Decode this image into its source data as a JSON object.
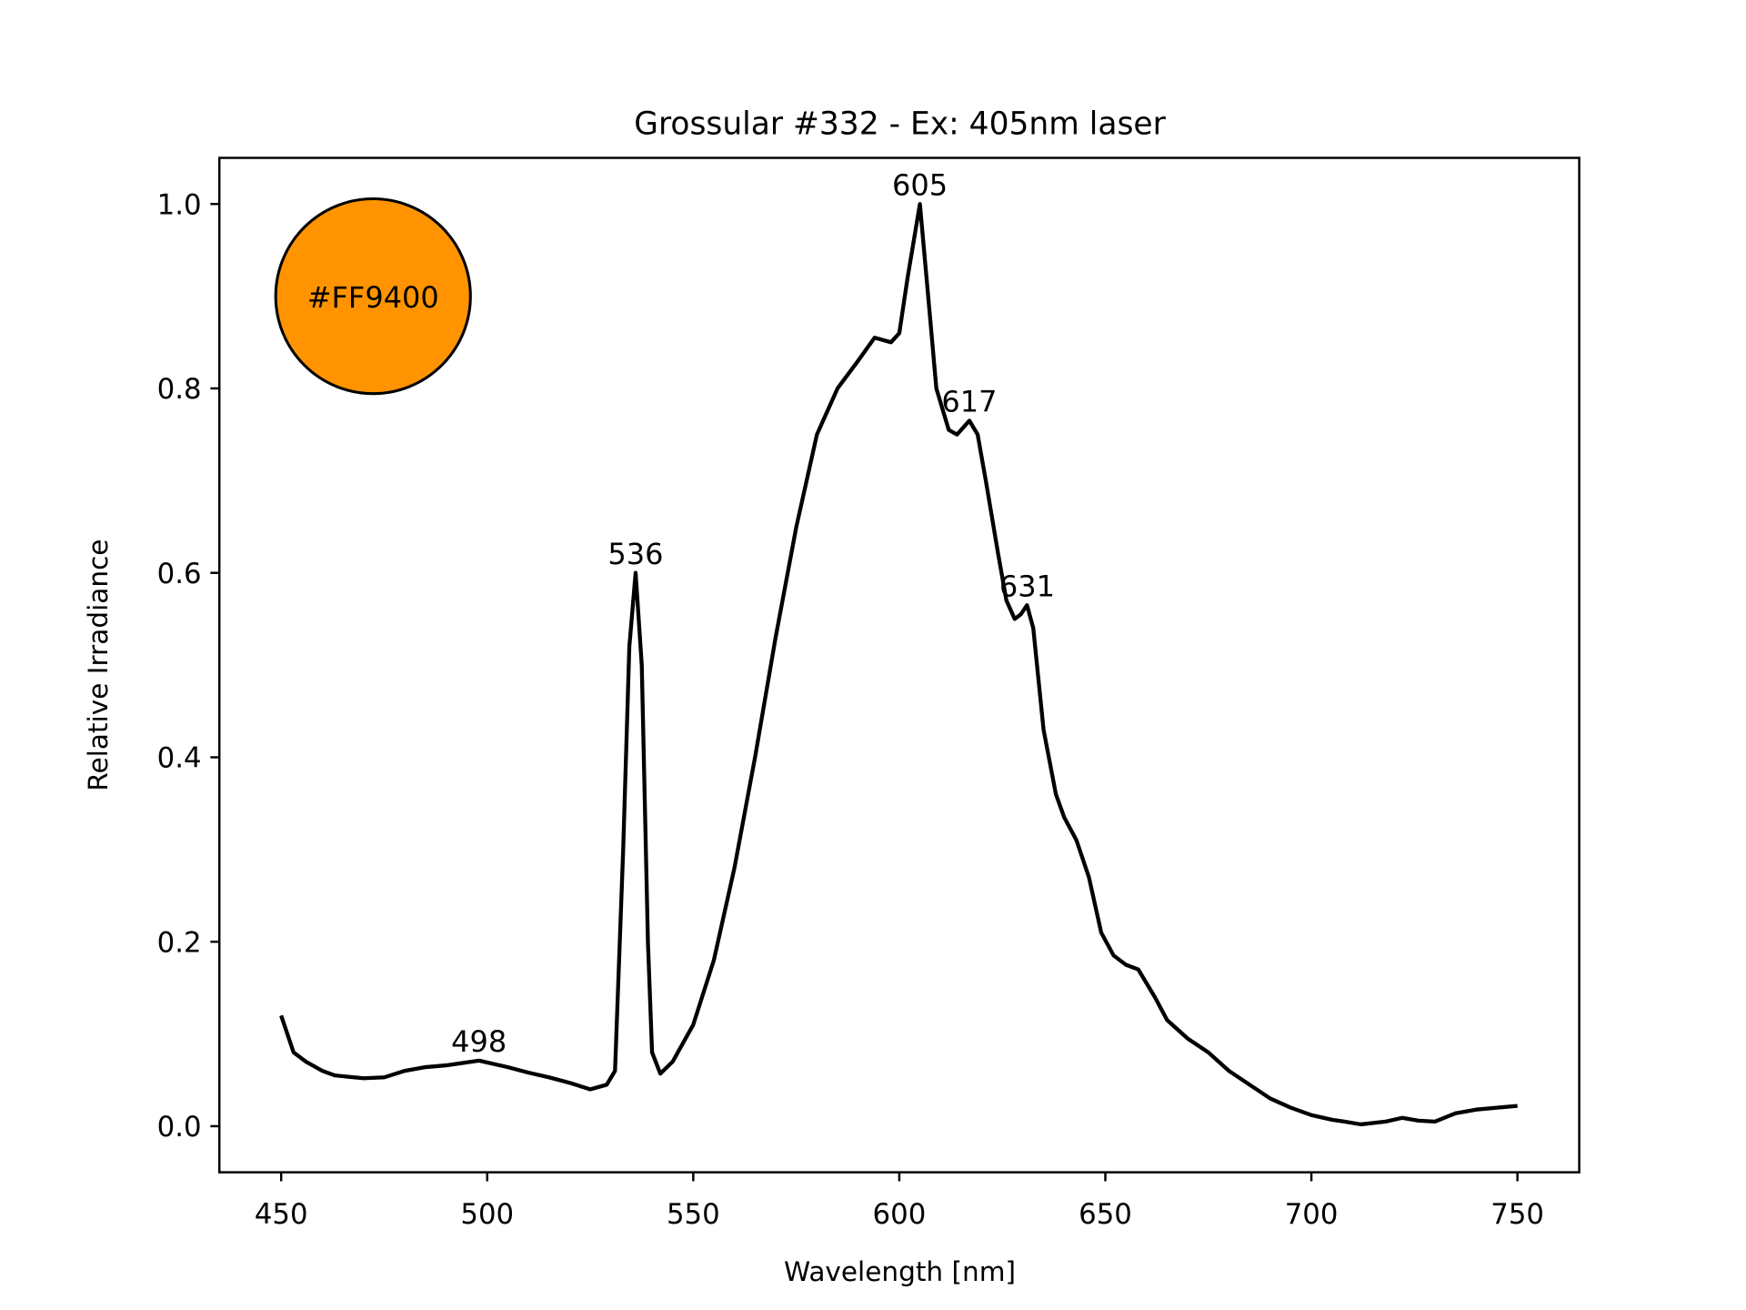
{
  "chart_data": {
    "type": "line",
    "title": "Grossular #332 - Ex: 405nm laser",
    "xlabel": "Wavelength [nm]",
    "ylabel": "Relative Irradiance",
    "xlim": [
      435,
      765
    ],
    "ylim": [
      -0.05,
      1.05
    ],
    "xticks": [
      450,
      500,
      550,
      600,
      650,
      700,
      750
    ],
    "xtick_labels": [
      "450",
      "500",
      "550",
      "600",
      "650",
      "700",
      "750"
    ],
    "yticks": [
      0.0,
      0.2,
      0.4,
      0.6,
      0.8,
      1.0
    ],
    "ytick_labels": [
      "0.0",
      "0.2",
      "0.4",
      "0.6",
      "0.8",
      "1.0"
    ],
    "grid": false,
    "series": [
      {
        "name": "spectrum",
        "color": "#000000",
        "x": [
          450,
          453,
          456,
          460,
          463,
          470,
          475,
          480,
          485,
          490,
          498,
          505,
          510,
          515,
          520,
          525,
          529,
          531,
          533,
          534.5,
          536,
          537.5,
          539,
          540,
          542,
          545,
          550,
          555,
          560,
          565,
          570,
          575,
          580,
          585,
          590,
          594,
          598,
          600,
          602,
          605,
          607,
          609,
          612,
          614,
          617,
          619,
          621,
          624,
          626,
          628,
          629.5,
          631,
          632.5,
          635,
          638,
          640,
          643,
          646,
          649,
          652,
          655,
          658,
          662,
          665,
          670,
          675,
          680,
          685,
          690,
          695,
          700,
          705,
          708,
          712,
          718,
          722,
          726,
          730,
          735,
          740,
          745,
          750
        ],
        "y": [
          0.12,
          0.08,
          0.07,
          0.06,
          0.055,
          0.052,
          0.053,
          0.06,
          0.064,
          0.066,
          0.071,
          0.064,
          0.058,
          0.053,
          0.047,
          0.04,
          0.045,
          0.06,
          0.3,
          0.52,
          0.6,
          0.5,
          0.2,
          0.08,
          0.057,
          0.07,
          0.11,
          0.18,
          0.28,
          0.4,
          0.53,
          0.65,
          0.75,
          0.8,
          0.83,
          0.855,
          0.85,
          0.86,
          0.92,
          1.0,
          0.9,
          0.8,
          0.755,
          0.75,
          0.765,
          0.75,
          0.7,
          0.62,
          0.57,
          0.55,
          0.555,
          0.565,
          0.54,
          0.43,
          0.36,
          0.335,
          0.31,
          0.27,
          0.21,
          0.185,
          0.175,
          0.17,
          0.14,
          0.115,
          0.095,
          0.08,
          0.06,
          0.045,
          0.03,
          0.02,
          0.012,
          0.007,
          0.005,
          0.002,
          0.005,
          0.009,
          0.006,
          0.005,
          0.014,
          0.018,
          0.02,
          0.022
        ]
      }
    ],
    "annotations": [
      {
        "text": "498",
        "x": 498,
        "y": 0.071
      },
      {
        "text": "536",
        "x": 536,
        "y": 0.6
      },
      {
        "text": "605",
        "x": 605,
        "y": 1.0
      },
      {
        "text": "617",
        "x": 617,
        "y": 0.765
      },
      {
        "text": "631",
        "x": 631,
        "y": 0.565
      }
    ],
    "color_swatch": {
      "label": "#FF9400",
      "color": "#FF9400",
      "x": 472.3,
      "y": 0.9
    }
  }
}
